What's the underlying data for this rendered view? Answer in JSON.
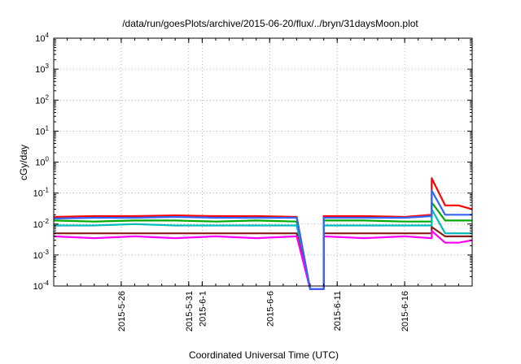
{
  "chart_data": {
    "type": "line",
    "title": "/data/run/goesPlots/archive/2015-06-20/flux/../bryn/31daysMoon.plot",
    "xlabel": "Coordinated Universal Time (UTC)",
    "ylabel": "cGy/day",
    "y_scale": "log",
    "ylim": [
      0.0001,
      10000
    ],
    "xlim": [
      "2015-05-21",
      "2015-06-21"
    ],
    "grid": true,
    "x_ticks": [
      "2015-5-26",
      "2015-5-31",
      "2015-6-1",
      "2015-6-6",
      "2015-6-11",
      "2015-6-16"
    ],
    "x_tick_dates": [
      "2015-05-26",
      "2015-05-31",
      "2015-06-01",
      "2015-06-06",
      "2015-06-11",
      "2015-06-16"
    ],
    "y_ticks": [
      {
        "value": 0.0001,
        "base": "10",
        "exp": "-4"
      },
      {
        "value": 0.001,
        "base": "10",
        "exp": "-3"
      },
      {
        "value": 0.01,
        "base": "10",
        "exp": "-2"
      },
      {
        "value": 0.1,
        "base": "10",
        "exp": "-1"
      },
      {
        "value": 1,
        "base": "10",
        "exp": "0"
      },
      {
        "value": 10,
        "base": "10",
        "exp": "1"
      },
      {
        "value": 100,
        "base": "10",
        "exp": "2"
      },
      {
        "value": 1000,
        "base": "10",
        "exp": "3"
      },
      {
        "value": 10000,
        "base": "10",
        "exp": "4"
      }
    ],
    "series": [
      {
        "color": "#ff0000",
        "x": [
          "2015-05-21",
          "2015-05-24",
          "2015-05-27",
          "2015-05-30",
          "2015-06-02",
          "2015-06-05",
          "2015-06-08",
          "2015-06-09",
          "2015-06-09",
          "2015-06-10",
          "2015-06-10",
          "2015-06-13",
          "2015-06-16",
          "2015-06-18",
          "2015-06-18",
          "2015-06-19",
          "2015-06-20",
          "2015-06-21"
        ],
        "values": [
          0.017,
          0.018,
          0.018,
          0.019,
          0.018,
          0.018,
          0.017,
          8e-05,
          8e-05,
          8e-05,
          0.018,
          0.018,
          0.017,
          0.02,
          0.3,
          0.04,
          0.04,
          0.03
        ]
      },
      {
        "color": "#00aa00",
        "x": [
          "2015-05-21",
          "2015-05-24",
          "2015-05-27",
          "2015-05-30",
          "2015-06-02",
          "2015-06-05",
          "2015-06-08",
          "2015-06-09",
          "2015-06-09",
          "2015-06-10",
          "2015-06-10",
          "2015-06-13",
          "2015-06-16",
          "2015-06-18",
          "2015-06-18",
          "2015-06-19",
          "2015-06-20",
          "2015-06-21"
        ],
        "values": [
          0.013,
          0.012,
          0.013,
          0.013,
          0.012,
          0.013,
          0.012,
          8e-05,
          8e-05,
          8e-05,
          0.013,
          0.013,
          0.012,
          0.012,
          0.05,
          0.013,
          0.013,
          0.013
        ]
      },
      {
        "color": "#00bbbb",
        "x": [
          "2015-05-21",
          "2015-05-24",
          "2015-05-27",
          "2015-05-30",
          "2015-06-02",
          "2015-06-05",
          "2015-06-08",
          "2015-06-09",
          "2015-06-09",
          "2015-06-10",
          "2015-06-10",
          "2015-06-13",
          "2015-06-16",
          "2015-06-18",
          "2015-06-18",
          "2015-06-19",
          "2015-06-20",
          "2015-06-21"
        ],
        "values": [
          0.009,
          0.009,
          0.01,
          0.009,
          0.009,
          0.009,
          0.009,
          8e-05,
          8e-05,
          8e-05,
          0.009,
          0.009,
          0.009,
          0.009,
          0.03,
          0.005,
          0.005,
          0.005
        ]
      },
      {
        "color": "#8b1a1a",
        "x": [
          "2015-05-21",
          "2015-05-24",
          "2015-05-27",
          "2015-05-30",
          "2015-06-02",
          "2015-06-05",
          "2015-06-08",
          "2015-06-09",
          "2015-06-09",
          "2015-06-10",
          "2015-06-10",
          "2015-06-13",
          "2015-06-16",
          "2015-06-18",
          "2015-06-18",
          "2015-06-19",
          "2015-06-20",
          "2015-06-21"
        ],
        "values": [
          0.005,
          0.005,
          0.005,
          0.005,
          0.005,
          0.005,
          0.005,
          8e-05,
          8e-05,
          8e-05,
          0.005,
          0.005,
          0.005,
          0.005,
          0.008,
          0.004,
          0.004,
          0.004
        ]
      },
      {
        "color": "#ff00ff",
        "x": [
          "2015-05-21",
          "2015-05-24",
          "2015-05-27",
          "2015-05-30",
          "2015-06-02",
          "2015-06-05",
          "2015-06-08",
          "2015-06-09",
          "2015-06-09",
          "2015-06-10",
          "2015-06-10",
          "2015-06-13",
          "2015-06-16",
          "2015-06-18",
          "2015-06-18",
          "2015-06-19",
          "2015-06-20",
          "2015-06-21"
        ],
        "values": [
          0.004,
          0.0035,
          0.004,
          0.0035,
          0.004,
          0.0035,
          0.004,
          8e-05,
          8e-05,
          8e-05,
          0.004,
          0.0035,
          0.004,
          0.0035,
          0.006,
          0.0025,
          0.0025,
          0.003
        ]
      },
      {
        "color": "#3366ff",
        "x": [
          "2015-05-21",
          "2015-05-24",
          "2015-05-27",
          "2015-05-30",
          "2015-06-02",
          "2015-06-05",
          "2015-06-08",
          "2015-06-09",
          "2015-06-09",
          "2015-06-10",
          "2015-06-10",
          "2015-06-13",
          "2015-06-16",
          "2015-06-18",
          "2015-06-18",
          "2015-06-19",
          "2015-06-20",
          "2015-06-21"
        ],
        "values": [
          0.015,
          0.016,
          0.016,
          0.017,
          0.016,
          0.016,
          0.016,
          8e-05,
          8e-05,
          8e-05,
          0.016,
          0.016,
          0.016,
          0.018,
          0.12,
          0.02,
          0.02,
          0.02
        ]
      }
    ]
  }
}
